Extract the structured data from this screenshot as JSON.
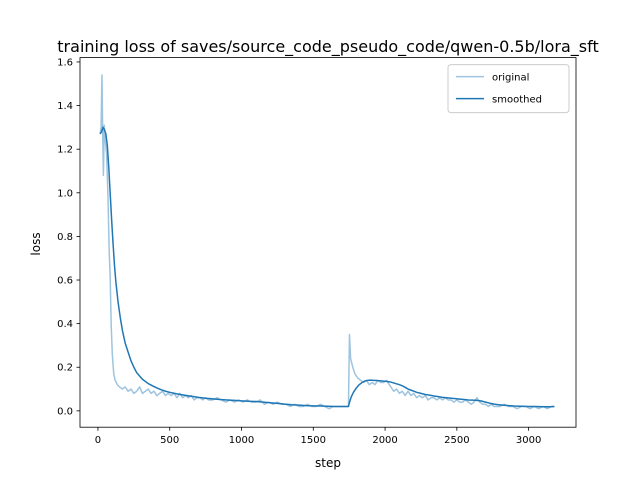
{
  "chart_data": {
    "type": "line",
    "title": "training loss of saves/source_code_pseudo_code/qwen-0.5b/lora_sft",
    "xlabel": "step",
    "ylabel": "loss",
    "xlim": [
      -125,
      3330
    ],
    "ylim": [
      -0.075,
      1.62
    ],
    "xticks": [
      0,
      500,
      1000,
      1500,
      2000,
      2500,
      3000
    ],
    "xtick_labels": [
      "0",
      "500",
      "1000",
      "1500",
      "2000",
      "2500",
      "3000"
    ],
    "yticks": [
      0.0,
      0.2,
      0.4,
      0.6,
      0.8,
      1.0,
      1.2,
      1.4,
      1.6
    ],
    "ytick_labels": [
      "0.0",
      "0.2",
      "0.4",
      "0.6",
      "0.8",
      "1.0",
      "1.2",
      "1.4",
      "1.6"
    ],
    "grid": false,
    "legend_position": "top-right",
    "series": [
      {
        "name": "original",
        "color": "#9ec4df",
        "points": [
          [
            15,
            1.27
          ],
          [
            22,
            1.3
          ],
          [
            28,
            1.54
          ],
          [
            33,
            1.28
          ],
          [
            38,
            1.08
          ],
          [
            44,
            1.31
          ],
          [
            50,
            1.25
          ],
          [
            60,
            1.18
          ],
          [
            70,
            0.98
          ],
          [
            78,
            0.74
          ],
          [
            85,
            0.62
          ],
          [
            92,
            0.4
          ],
          [
            100,
            0.26
          ],
          [
            110,
            0.17
          ],
          [
            120,
            0.14
          ],
          [
            135,
            0.12
          ],
          [
            150,
            0.11
          ],
          [
            170,
            0.1
          ],
          [
            190,
            0.11
          ],
          [
            210,
            0.09
          ],
          [
            230,
            0.1
          ],
          [
            250,
            0.08
          ],
          [
            270,
            0.09
          ],
          [
            290,
            0.11
          ],
          [
            310,
            0.08
          ],
          [
            330,
            0.09
          ],
          [
            350,
            0.1
          ],
          [
            370,
            0.08
          ],
          [
            390,
            0.09
          ],
          [
            410,
            0.07
          ],
          [
            430,
            0.08
          ],
          [
            450,
            0.09
          ],
          [
            470,
            0.07
          ],
          [
            490,
            0.08
          ],
          [
            510,
            0.07
          ],
          [
            530,
            0.08
          ],
          [
            550,
            0.06
          ],
          [
            570,
            0.08
          ],
          [
            590,
            0.06
          ],
          [
            610,
            0.07
          ],
          [
            630,
            0.06
          ],
          [
            650,
            0.07
          ],
          [
            670,
            0.05
          ],
          [
            690,
            0.06
          ],
          [
            710,
            0.06
          ],
          [
            730,
            0.05
          ],
          [
            750,
            0.06
          ],
          [
            770,
            0.05
          ],
          [
            800,
            0.05
          ],
          [
            830,
            0.06
          ],
          [
            860,
            0.05
          ],
          [
            890,
            0.04
          ],
          [
            920,
            0.05
          ],
          [
            950,
            0.04
          ],
          [
            980,
            0.05
          ],
          [
            1010,
            0.04
          ],
          [
            1040,
            0.05
          ],
          [
            1070,
            0.04
          ],
          [
            1100,
            0.04
          ],
          [
            1130,
            0.05
          ],
          [
            1160,
            0.03
          ],
          [
            1190,
            0.04
          ],
          [
            1220,
            0.03
          ],
          [
            1250,
            0.04
          ],
          [
            1280,
            0.03
          ],
          [
            1310,
            0.03
          ],
          [
            1340,
            0.02
          ],
          [
            1370,
            0.03
          ],
          [
            1400,
            0.02
          ],
          [
            1430,
            0.02
          ],
          [
            1460,
            0.03
          ],
          [
            1490,
            0.02
          ],
          [
            1520,
            0.02
          ],
          [
            1550,
            0.03
          ],
          [
            1580,
            0.02
          ],
          [
            1610,
            0.01
          ],
          [
            1640,
            0.02
          ],
          [
            1670,
            0.02
          ],
          [
            1700,
            0.02
          ],
          [
            1730,
            0.02
          ],
          [
            1745,
            0.02
          ],
          [
            1752,
            0.35
          ],
          [
            1760,
            0.24
          ],
          [
            1775,
            0.2
          ],
          [
            1790,
            0.17
          ],
          [
            1810,
            0.15
          ],
          [
            1830,
            0.14
          ],
          [
            1850,
            0.13
          ],
          [
            1870,
            0.14
          ],
          [
            1890,
            0.12
          ],
          [
            1910,
            0.13
          ],
          [
            1930,
            0.12
          ],
          [
            1950,
            0.14
          ],
          [
            1970,
            0.13
          ],
          [
            1990,
            0.13
          ],
          [
            2010,
            0.14
          ],
          [
            2030,
            0.12
          ],
          [
            2050,
            0.1
          ],
          [
            2060,
            0.09
          ],
          [
            2080,
            0.1
          ],
          [
            2100,
            0.08
          ],
          [
            2120,
            0.09
          ],
          [
            2140,
            0.07
          ],
          [
            2160,
            0.09
          ],
          [
            2180,
            0.07
          ],
          [
            2200,
            0.08
          ],
          [
            2220,
            0.06
          ],
          [
            2240,
            0.07
          ],
          [
            2260,
            0.06
          ],
          [
            2280,
            0.07
          ],
          [
            2300,
            0.05
          ],
          [
            2320,
            0.06
          ],
          [
            2340,
            0.06
          ],
          [
            2360,
            0.05
          ],
          [
            2380,
            0.06
          ],
          [
            2400,
            0.05
          ],
          [
            2420,
            0.06
          ],
          [
            2440,
            0.05
          ],
          [
            2460,
            0.05
          ],
          [
            2480,
            0.04
          ],
          [
            2500,
            0.05
          ],
          [
            2520,
            0.04
          ],
          [
            2540,
            0.04
          ],
          [
            2560,
            0.05
          ],
          [
            2580,
            0.04
          ],
          [
            2600,
            0.03
          ],
          [
            2620,
            0.04
          ],
          [
            2640,
            0.06
          ],
          [
            2660,
            0.04
          ],
          [
            2680,
            0.03
          ],
          [
            2700,
            0.03
          ],
          [
            2720,
            0.02
          ],
          [
            2740,
            0.03
          ],
          [
            2760,
            0.02
          ],
          [
            2780,
            0.02
          ],
          [
            2800,
            0.02
          ],
          [
            2830,
            0.03
          ],
          [
            2860,
            0.02
          ],
          [
            2890,
            0.02
          ],
          [
            2920,
            0.01
          ],
          [
            2950,
            0.02
          ],
          [
            2980,
            0.02
          ],
          [
            3010,
            0.01
          ],
          [
            3040,
            0.02
          ],
          [
            3070,
            0.01
          ],
          [
            3100,
            0.02
          ],
          [
            3130,
            0.01
          ],
          [
            3160,
            0.02
          ],
          [
            3180,
            0.02
          ]
        ]
      },
      {
        "name": "smoothed",
        "color": "#1f77b4",
        "points": [
          [
            15,
            1.27
          ],
          [
            25,
            1.28
          ],
          [
            35,
            1.3
          ],
          [
            45,
            1.29
          ],
          [
            55,
            1.27
          ],
          [
            65,
            1.22
          ],
          [
            75,
            1.12
          ],
          [
            85,
            1.0
          ],
          [
            95,
            0.88
          ],
          [
            105,
            0.77
          ],
          [
            115,
            0.67
          ],
          [
            125,
            0.59
          ],
          [
            140,
            0.5
          ],
          [
            155,
            0.43
          ],
          [
            170,
            0.37
          ],
          [
            190,
            0.31
          ],
          [
            210,
            0.27
          ],
          [
            230,
            0.23
          ],
          [
            250,
            0.2
          ],
          [
            270,
            0.175
          ],
          [
            290,
            0.16
          ],
          [
            310,
            0.145
          ],
          [
            330,
            0.135
          ],
          [
            350,
            0.125
          ],
          [
            380,
            0.115
          ],
          [
            410,
            0.105
          ],
          [
            440,
            0.097
          ],
          [
            470,
            0.09
          ],
          [
            500,
            0.085
          ],
          [
            550,
            0.078
          ],
          [
            600,
            0.072
          ],
          [
            650,
            0.067
          ],
          [
            700,
            0.062
          ],
          [
            750,
            0.058
          ],
          [
            800,
            0.055
          ],
          [
            850,
            0.052
          ],
          [
            900,
            0.05
          ],
          [
            950,
            0.048
          ],
          [
            1000,
            0.046
          ],
          [
            1050,
            0.044
          ],
          [
            1100,
            0.043
          ],
          [
            1150,
            0.04
          ],
          [
            1200,
            0.037
          ],
          [
            1250,
            0.034
          ],
          [
            1300,
            0.031
          ],
          [
            1350,
            0.028
          ],
          [
            1400,
            0.026
          ],
          [
            1450,
            0.024
          ],
          [
            1500,
            0.023
          ],
          [
            1550,
            0.022
          ],
          [
            1600,
            0.021
          ],
          [
            1650,
            0.02
          ],
          [
            1700,
            0.02
          ],
          [
            1745,
            0.02
          ],
          [
            1755,
            0.045
          ],
          [
            1765,
            0.065
          ],
          [
            1780,
            0.085
          ],
          [
            1800,
            0.105
          ],
          [
            1820,
            0.12
          ],
          [
            1840,
            0.13
          ],
          [
            1860,
            0.137
          ],
          [
            1880,
            0.14
          ],
          [
            1900,
            0.141
          ],
          [
            1920,
            0.14
          ],
          [
            1940,
            0.139
          ],
          [
            1960,
            0.138
          ],
          [
            1980,
            0.137
          ],
          [
            2000,
            0.136
          ],
          [
            2020,
            0.134
          ],
          [
            2040,
            0.132
          ],
          [
            2060,
            0.128
          ],
          [
            2080,
            0.124
          ],
          [
            2100,
            0.12
          ],
          [
            2120,
            0.115
          ],
          [
            2140,
            0.108
          ],
          [
            2160,
            0.1
          ],
          [
            2180,
            0.095
          ],
          [
            2200,
            0.09
          ],
          [
            2220,
            0.085
          ],
          [
            2250,
            0.08
          ],
          [
            2280,
            0.075
          ],
          [
            2310,
            0.072
          ],
          [
            2340,
            0.068
          ],
          [
            2370,
            0.065
          ],
          [
            2400,
            0.062
          ],
          [
            2430,
            0.06
          ],
          [
            2460,
            0.058
          ],
          [
            2490,
            0.056
          ],
          [
            2520,
            0.054
          ],
          [
            2550,
            0.052
          ],
          [
            2580,
            0.05
          ],
          [
            2610,
            0.049
          ],
          [
            2640,
            0.048
          ],
          [
            2670,
            0.045
          ],
          [
            2700,
            0.04
          ],
          [
            2730,
            0.035
          ],
          [
            2760,
            0.031
          ],
          [
            2790,
            0.028
          ],
          [
            2820,
            0.026
          ],
          [
            2860,
            0.024
          ],
          [
            2900,
            0.022
          ],
          [
            2950,
            0.021
          ],
          [
            3000,
            0.02
          ],
          [
            3050,
            0.02
          ],
          [
            3100,
            0.019
          ],
          [
            3150,
            0.019
          ],
          [
            3180,
            0.02
          ]
        ]
      }
    ]
  }
}
